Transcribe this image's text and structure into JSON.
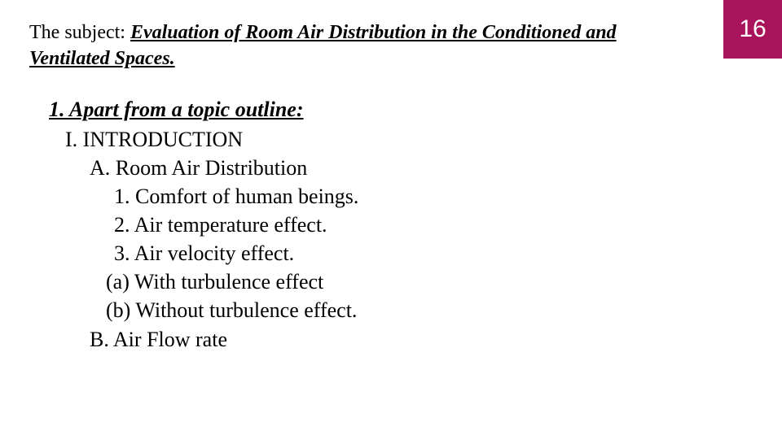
{
  "slide": {
    "number": "16",
    "accent_color": "#a9135c"
  },
  "header": {
    "label": "The subject: ",
    "title": "Evaluation of Room Air Distribution in the Conditioned and Ventilated Spaces."
  },
  "outline": {
    "heading": "1. Apart from a topic outline:",
    "items": [
      {
        "level": "l1",
        "text": "I. INTRODUCTION"
      },
      {
        "level": "l2",
        "text": "A. Room Air Distribution"
      },
      {
        "level": "l3",
        "text": "1. Comfort of human beings."
      },
      {
        "level": "l3",
        "text": "2. Air temperature effect."
      },
      {
        "level": "l3",
        "text": "3. Air velocity effect."
      },
      {
        "level": "l4",
        "text": "(a) With turbulence effect"
      },
      {
        "level": "l4",
        "text": "(b) Without turbulence effect."
      },
      {
        "level": "l2b",
        "text": "B. Air Flow rate"
      }
    ]
  }
}
